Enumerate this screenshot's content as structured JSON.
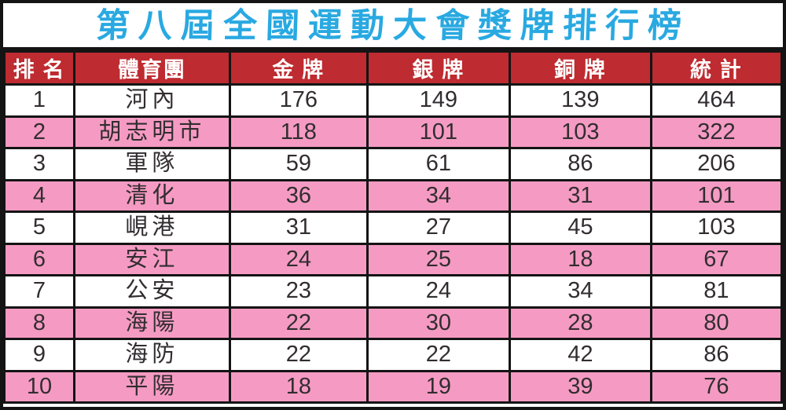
{
  "page_title": "第八屆全國運動大會獎牌排行榜",
  "colors": {
    "title_text": "#29A9E1",
    "header_bg": "#BE2B30",
    "header_text": "#FFFFFF",
    "row_bg": "#FFFFFF",
    "row_alt_bg": "#F59BC3",
    "cell_text": "#322D30",
    "border": "#141414"
  },
  "table": {
    "headers": [
      "排 名",
      "體育團",
      "金 牌",
      "銀 牌",
      "銅 牌",
      "統 計"
    ]
  },
  "chart_data": {
    "type": "table",
    "title": "第八屆全國運動大會獎牌排行榜",
    "columns": [
      "排名",
      "體育團",
      "金牌",
      "銀牌",
      "銅牌",
      "統計"
    ],
    "rows": [
      [
        1,
        "河內",
        176,
        149,
        139,
        464
      ],
      [
        2,
        "胡志明市",
        118,
        101,
        103,
        322
      ],
      [
        3,
        "軍隊",
        59,
        61,
        86,
        206
      ],
      [
        4,
        "清化",
        36,
        34,
        31,
        101
      ],
      [
        5,
        "峴港",
        31,
        27,
        45,
        103
      ],
      [
        6,
        "安江",
        24,
        25,
        18,
        67
      ],
      [
        7,
        "公安",
        23,
        24,
        34,
        81
      ],
      [
        8,
        "海陽",
        22,
        30,
        28,
        80
      ],
      [
        9,
        "海防",
        22,
        22,
        42,
        86
      ],
      [
        10,
        "平陽",
        18,
        19,
        39,
        76
      ]
    ],
    "layout": {
      "row_striping": [
        "white",
        "pink"
      ],
      "header_style": "white text on dark red",
      "title_style": "cyan brush calligraphy on white band",
      "grid": true
    }
  }
}
